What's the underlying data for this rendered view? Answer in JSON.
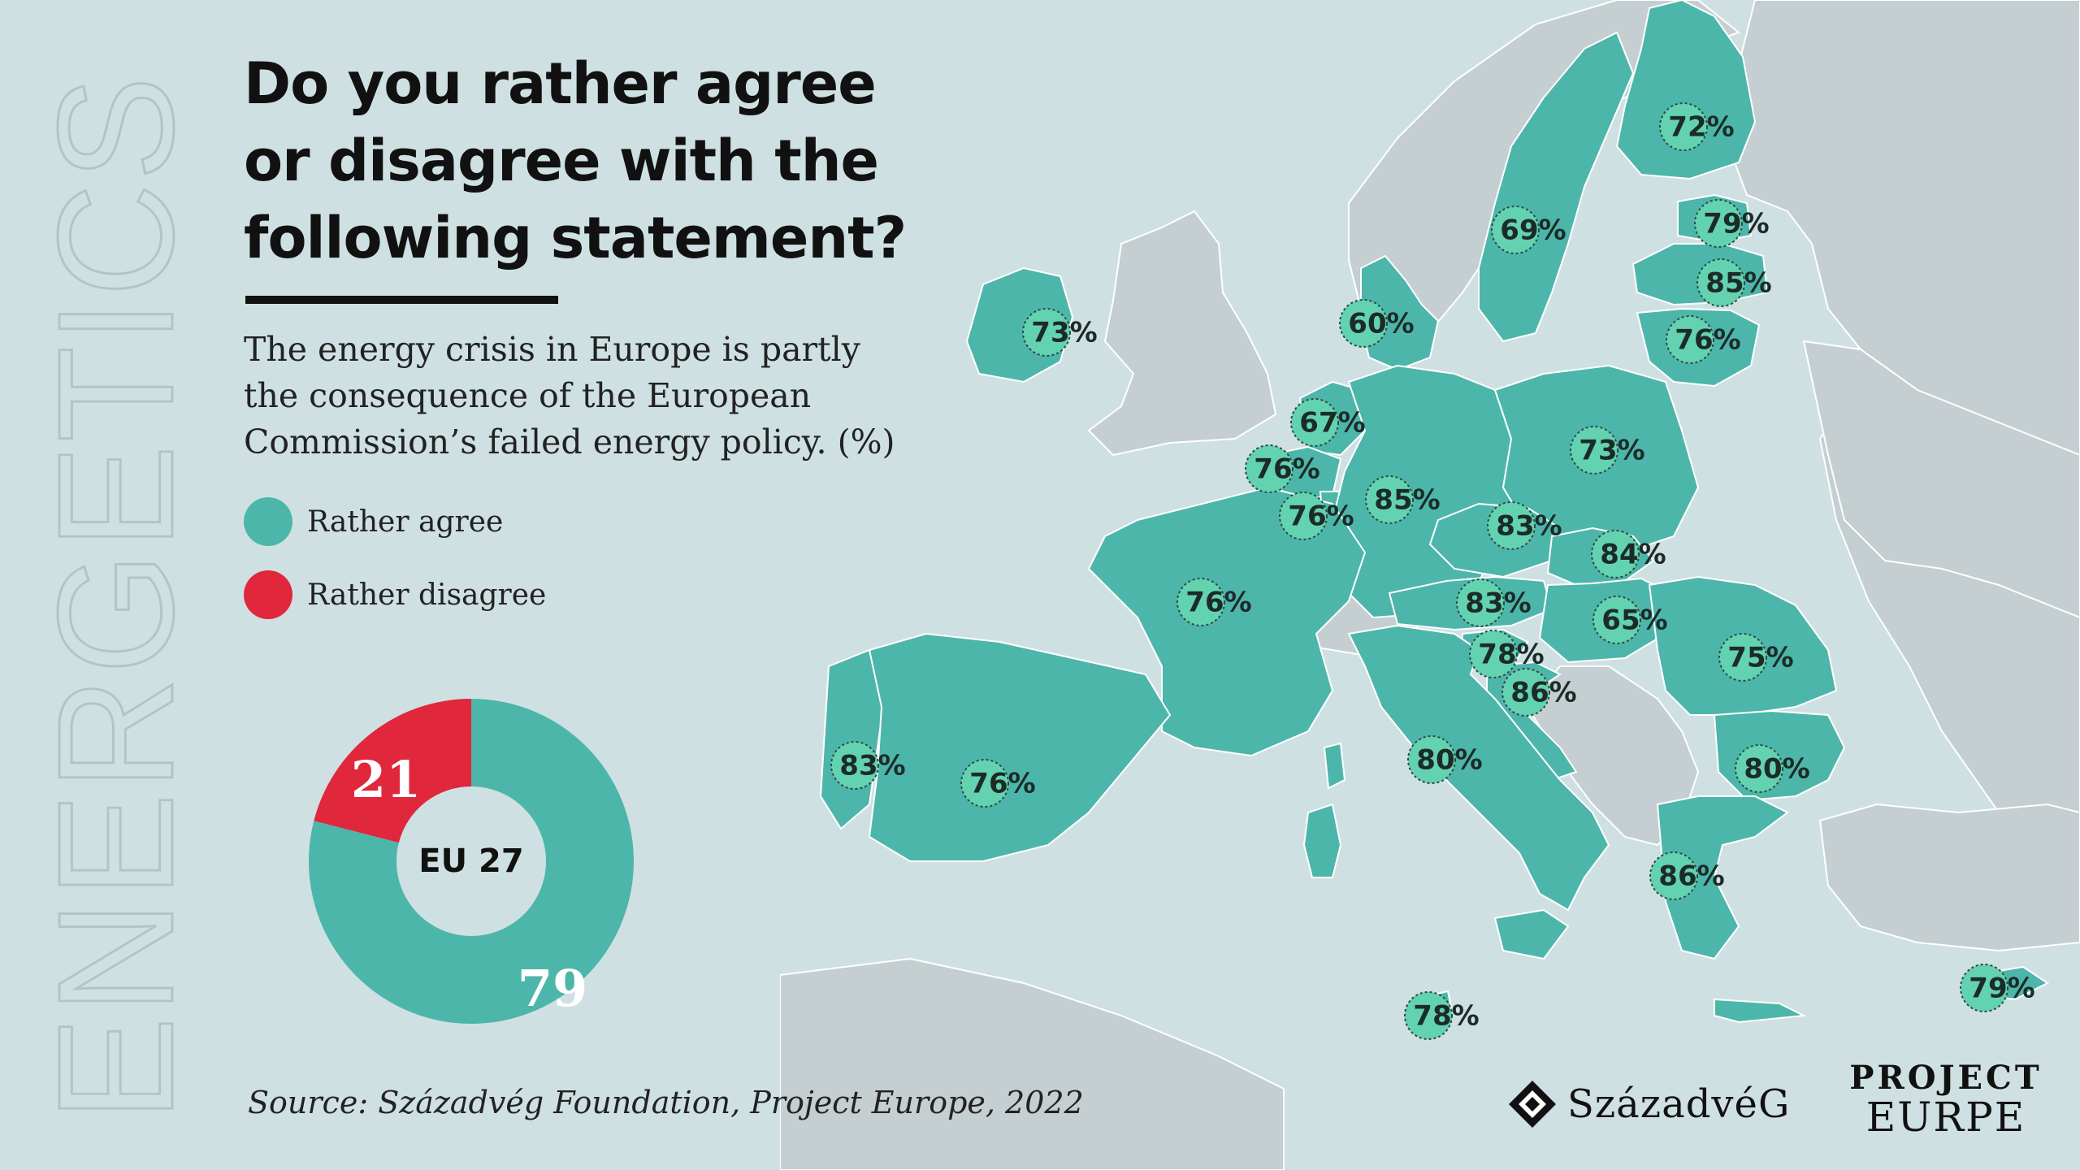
{
  "side_word": "ENERGETICS",
  "title": "Do you rather agree or disagree with the following statement?",
  "subtitle": "The energy crisis in Europe is partly the consequence of the European Commission’s failed energy policy. (%)",
  "legend": [
    {
      "label": "Rather agree",
      "color": "#4db6aa"
    },
    {
      "label": "Rather disagree",
      "color": "#e0273b"
    }
  ],
  "colors": {
    "agree": "#4db6aa",
    "disagree": "#e0273b",
    "background": "#cfe0e3",
    "nonmember": "#c5ced1",
    "sea": "#cfe0e3"
  },
  "chart_data": [
    {
      "type": "pie",
      "center_label": "EU 27",
      "slices": [
        {
          "name": "Rather agree",
          "value": 79,
          "color": "#4db6aa"
        },
        {
          "name": "Rather disagree",
          "value": 21,
          "color": "#e0273b"
        }
      ]
    },
    {
      "type": "map",
      "regions": [
        {
          "name": "Finland",
          "value": 72
        },
        {
          "name": "Sweden",
          "value": 69
        },
        {
          "name": "Estonia",
          "value": 79
        },
        {
          "name": "Latvia",
          "value": 85
        },
        {
          "name": "Lithuania",
          "value": 76
        },
        {
          "name": "Denmark",
          "value": 60
        },
        {
          "name": "Ireland",
          "value": 73
        },
        {
          "name": "Netherlands",
          "value": 67
        },
        {
          "name": "Belgium",
          "value": 76
        },
        {
          "name": "Luxembourg",
          "value": 76
        },
        {
          "name": "Germany",
          "value": 85
        },
        {
          "name": "Poland",
          "value": 73
        },
        {
          "name": "Czechia",
          "value": 83
        },
        {
          "name": "Slovakia",
          "value": 84
        },
        {
          "name": "Austria",
          "value": 83
        },
        {
          "name": "Hungary",
          "value": 65
        },
        {
          "name": "Slovenia",
          "value": 78
        },
        {
          "name": "Croatia",
          "value": 86
        },
        {
          "name": "France",
          "value": 76
        },
        {
          "name": "Romania",
          "value": 75
        },
        {
          "name": "Italy",
          "value": 80
        },
        {
          "name": "Bulgaria",
          "value": 80
        },
        {
          "name": "Portugal",
          "value": 83
        },
        {
          "name": "Spain",
          "value": 76
        },
        {
          "name": "Greece",
          "value": 86
        },
        {
          "name": "Malta",
          "value": 78
        },
        {
          "name": "Cyprus",
          "value": 79
        }
      ]
    }
  ],
  "source": "Source: Századvég Foundation, Project Europe, 2022",
  "logos": {
    "szazadveg": "SzázadvéG",
    "project_line1": "PROJECT",
    "project_line2": "EURPE"
  }
}
